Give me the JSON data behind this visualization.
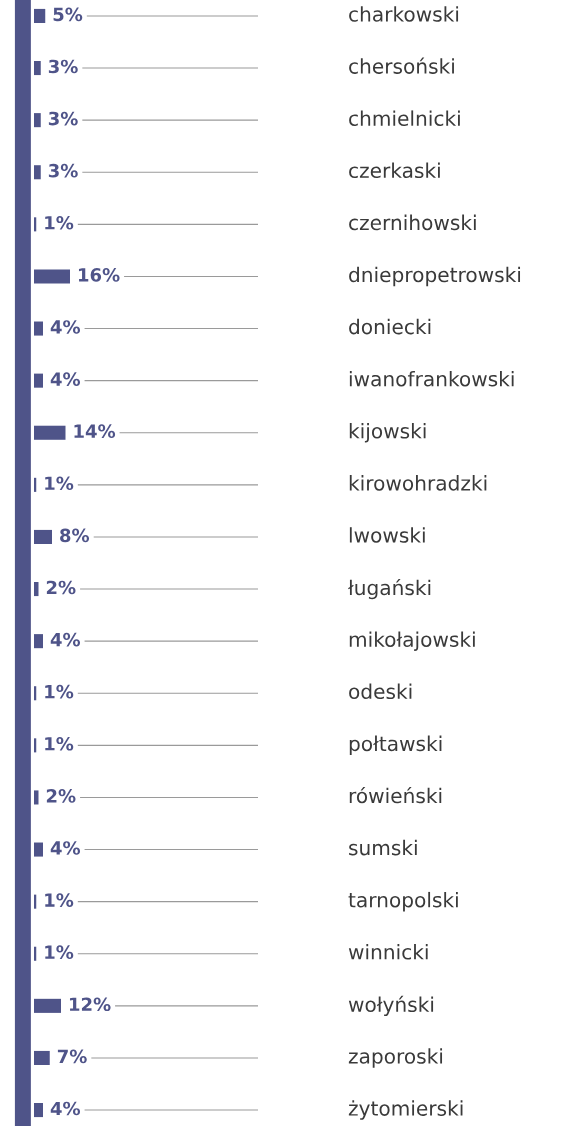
{
  "chart_data": {
    "type": "bar",
    "orientation": "horizontal",
    "categories": [
      "charkowski",
      "chersoński",
      "chmielnicki",
      "czerkaski",
      "czernihowski",
      "dniepropetrowski",
      "doniecki",
      "iwanofrankowski",
      "kijowski",
      "kirowohradzki",
      "lwowski",
      "ługański",
      "mikołajowski",
      "odeski",
      "połtawski",
      "rówieński",
      "sumski",
      "tarnopolski",
      "winnicki",
      "wołyński",
      "zaporoski",
      "żytomierski"
    ],
    "values": [
      5,
      3,
      3,
      3,
      1,
      16,
      4,
      4,
      14,
      1,
      8,
      2,
      4,
      1,
      1,
      2,
      4,
      1,
      1,
      12,
      7,
      4
    ],
    "value_labels": [
      "5%",
      "3%",
      "3%",
      "3%",
      "1%",
      "16%",
      "4%",
      "4%",
      "14%",
      "1%",
      "8%",
      "2%",
      "4%",
      "1%",
      "1%",
      "2%",
      "4%",
      "1%",
      "1%",
      "12%",
      "7%",
      "4%"
    ],
    "color": "#4f5489",
    "grid": "y",
    "tick_labels": false
  }
}
